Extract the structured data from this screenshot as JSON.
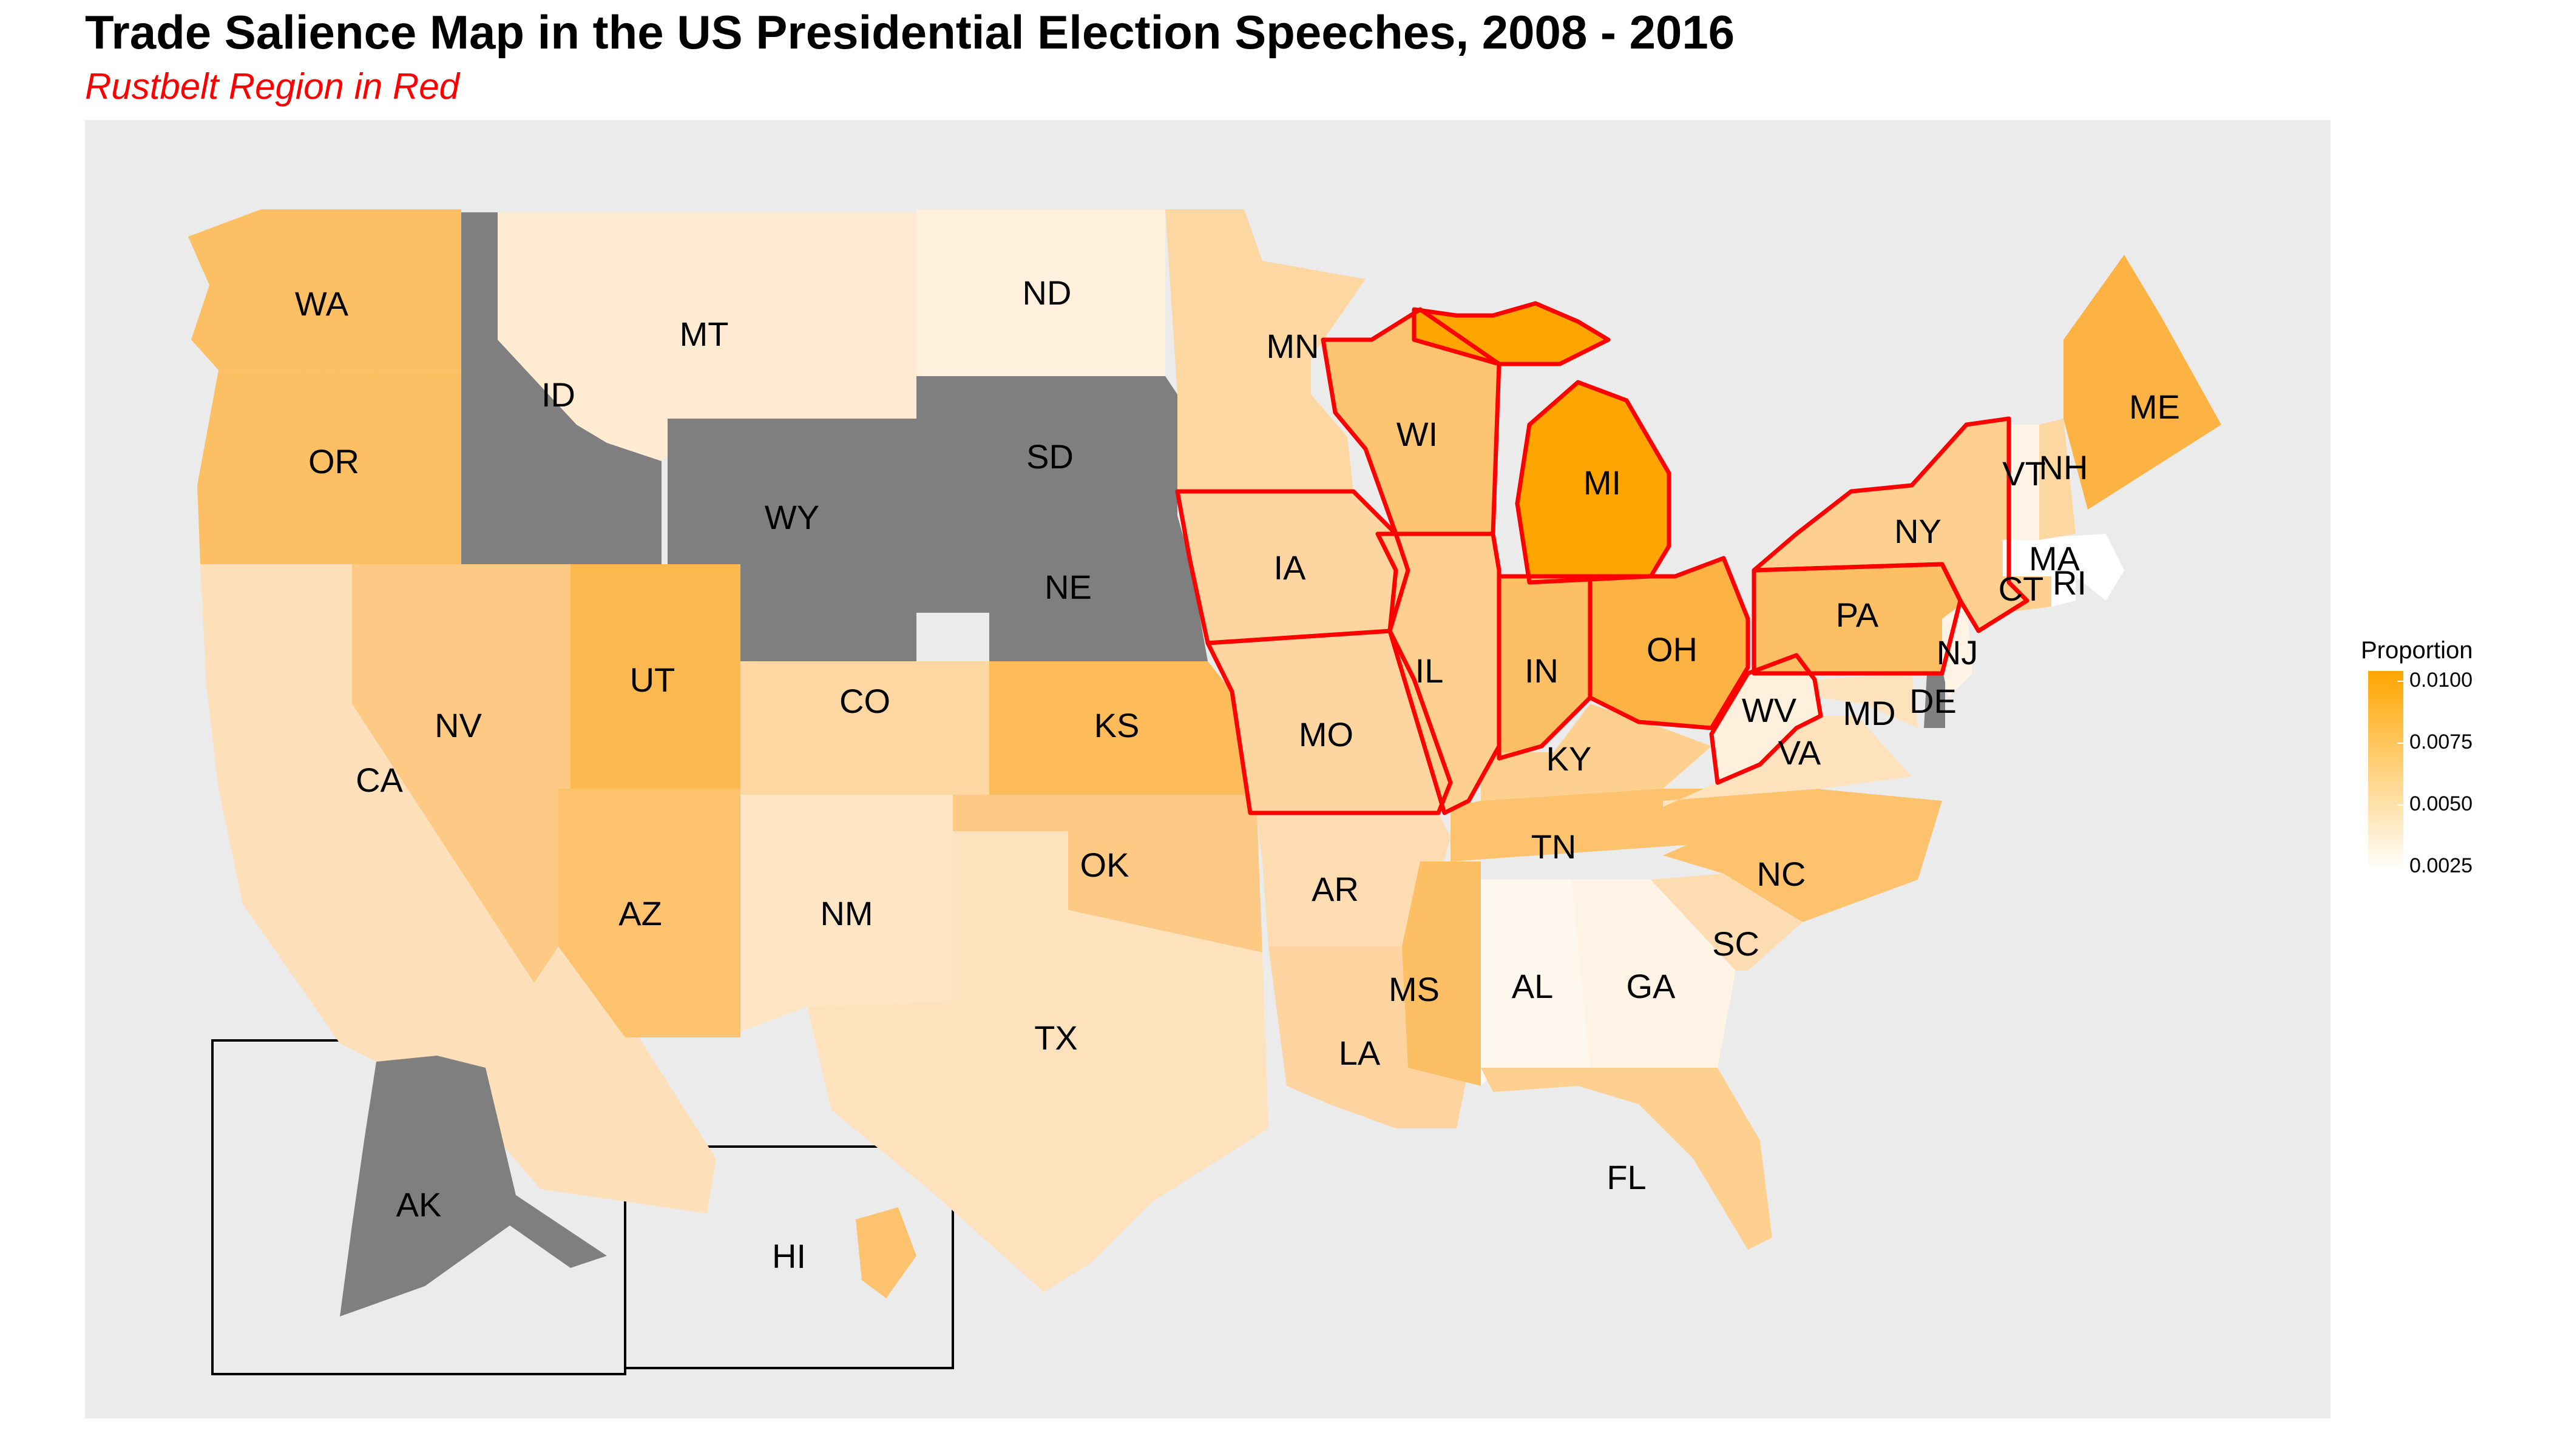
{
  "title": "Trade Salience Map in the US Presidential Election Speeches, 2008 - 2016",
  "subtitle": "Rustbelt Region in Red",
  "legend": {
    "title": "Proportion",
    "ticks": [
      "0.0100",
      "0.0075",
      "0.0050",
      "0.0025"
    ],
    "color_high": "#ffa500",
    "color_low": "#ffffff",
    "no_data_color": "#7f7f7f"
  },
  "highlight_color": "#ff0000",
  "states": [
    {
      "abbr": "WA",
      "color": "#fdbf64",
      "rustbelt": false
    },
    {
      "abbr": "OR",
      "color": "#fdbf64",
      "rustbelt": false
    },
    {
      "abbr": "CA",
      "color": "#fde0b9",
      "rustbelt": false
    },
    {
      "abbr": "ID",
      "color": "#7f7f7f",
      "rustbelt": false
    },
    {
      "abbr": "NV",
      "color": "#fdca85",
      "rustbelt": false
    },
    {
      "abbr": "MT",
      "color": "#feebd1",
      "rustbelt": false
    },
    {
      "abbr": "WY",
      "color": "#7f7f7f",
      "rustbelt": false
    },
    {
      "abbr": "UT",
      "color": "#fdb94f",
      "rustbelt": false
    },
    {
      "abbr": "AZ",
      "color": "#fdc26e",
      "rustbelt": false
    },
    {
      "abbr": "CO",
      "color": "#fdd7a2",
      "rustbelt": false
    },
    {
      "abbr": "NM",
      "color": "#fee6c5",
      "rustbelt": false
    },
    {
      "abbr": "ND",
      "color": "#fef0dc",
      "rustbelt": false
    },
    {
      "abbr": "SD",
      "color": "#7f7f7f",
      "rustbelt": false
    },
    {
      "abbr": "NE",
      "color": "#7f7f7f",
      "rustbelt": false
    },
    {
      "abbr": "KS",
      "color": "#fdbb59",
      "rustbelt": false
    },
    {
      "abbr": "OK",
      "color": "#fdca85",
      "rustbelt": false
    },
    {
      "abbr": "TX",
      "color": "#fee2be",
      "rustbelt": false
    },
    {
      "abbr": "MN",
      "color": "#fdd7a2",
      "rustbelt": false
    },
    {
      "abbr": "IA",
      "color": "#fdd5a0",
      "rustbelt": true
    },
    {
      "abbr": "MO",
      "color": "#fdd5a0",
      "rustbelt": true
    },
    {
      "abbr": "AR",
      "color": "#fddcb1",
      "rustbelt": false
    },
    {
      "abbr": "LA",
      "color": "#fdd3a0",
      "rustbelt": false
    },
    {
      "abbr": "WI",
      "color": "#fdc572",
      "rustbelt": true
    },
    {
      "abbr": "IL",
      "color": "#fdd090",
      "rustbelt": true
    },
    {
      "abbr": "MI",
      "color": "#ffa500",
      "rustbelt": true
    },
    {
      "abbr": "IN",
      "color": "#fdbf64",
      "rustbelt": true
    },
    {
      "abbr": "OH",
      "color": "#fdb244",
      "rustbelt": true
    },
    {
      "abbr": "KY",
      "color": "#fdd090",
      "rustbelt": false
    },
    {
      "abbr": "TN",
      "color": "#fdc26e",
      "rustbelt": false
    },
    {
      "abbr": "MS",
      "color": "#fdbf64",
      "rustbelt": false
    },
    {
      "abbr": "AL",
      "color": "#fef7ee",
      "rustbelt": false
    },
    {
      "abbr": "GA",
      "color": "#fef3e4",
      "rustbelt": false
    },
    {
      "abbr": "FL",
      "color": "#fdd090",
      "rustbelt": false
    },
    {
      "abbr": "SC",
      "color": "#fddcb1",
      "rustbelt": false
    },
    {
      "abbr": "NC",
      "color": "#fdc26e",
      "rustbelt": false
    },
    {
      "abbr": "VA",
      "color": "#fee2be",
      "rustbelt": false
    },
    {
      "abbr": "WV",
      "color": "#fef0dc",
      "rustbelt": true
    },
    {
      "abbr": "MD",
      "color": "#fee2be",
      "rustbelt": false
    },
    {
      "abbr": "DE",
      "color": "#7f7f7f",
      "rustbelt": false
    },
    {
      "abbr": "PA",
      "color": "#fdbf64",
      "rustbelt": true
    },
    {
      "abbr": "NJ",
      "color": "#fef3e4",
      "rustbelt": false
    },
    {
      "abbr": "NY",
      "color": "#fdd090",
      "rustbelt": true
    },
    {
      "abbr": "CT",
      "color": "#fdd090",
      "rustbelt": false
    },
    {
      "abbr": "RI",
      "color": "#ffffff",
      "rustbelt": false
    },
    {
      "abbr": "MA",
      "color": "#ffffff",
      "rustbelt": false
    },
    {
      "abbr": "VT",
      "color": "#fef3e4",
      "rustbelt": false
    },
    {
      "abbr": "NH",
      "color": "#fdd7a2",
      "rustbelt": false
    },
    {
      "abbr": "ME",
      "color": "#fdb244",
      "rustbelt": false
    },
    {
      "abbr": "AK",
      "color": "#7f7f7f",
      "rustbelt": false
    },
    {
      "abbr": "HI",
      "color": "#fdc26e",
      "rustbelt": false
    }
  ]
}
